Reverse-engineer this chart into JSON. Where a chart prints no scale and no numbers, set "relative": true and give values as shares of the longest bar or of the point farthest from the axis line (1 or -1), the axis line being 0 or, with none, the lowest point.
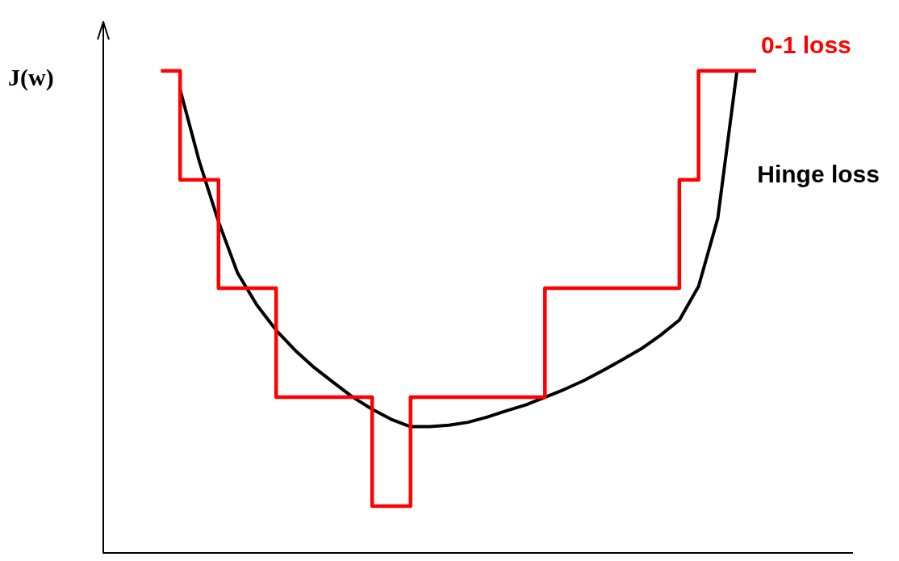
{
  "chart_data": {
    "type": "line",
    "relative": true,
    "ylabel": "J(w)",
    "legend": false,
    "grid": false,
    "marker": "none",
    "categories": [
      null,
      null,
      null,
      null,
      null,
      null,
      null,
      null,
      null,
      null,
      null,
      null,
      null,
      null,
      null,
      null,
      null,
      null,
      null,
      null,
      null,
      null,
      null,
      null,
      null,
      null,
      null,
      null,
      null,
      null,
      null,
      null,
      null,
      null,
      null,
      null,
      null,
      null,
      null,
      null
    ],
    "series": [
      {
        "name": "0-1 loss",
        "type": "step",
        "color": "#ff0000",
        "values": [
          null,
          null,
          null,
          1.0,
          1.0,
          0.774,
          0.774,
          0.549,
          0.549,
          0.549,
          0.323,
          0.323,
          0.323,
          0.323,
          0.323,
          0.097,
          0.097,
          0.323,
          0.323,
          0.323,
          0.323,
          0.323,
          0.323,
          0.323,
          0.549,
          0.549,
          0.549,
          0.549,
          0.549,
          0.549,
          0.549,
          0.774,
          1.0,
          1.0,
          1.0,
          null,
          null,
          null,
          null,
          null
        ]
      },
      {
        "name": "Hinge loss",
        "color": "#000000",
        "values": [
          null,
          null,
          null,
          null,
          0.961,
          0.812,
          0.687,
          0.58,
          0.514,
          0.462,
          0.42,
          0.384,
          0.353,
          0.323,
          0.298,
          0.277,
          0.262,
          0.262,
          0.265,
          0.271,
          0.282,
          0.295,
          0.307,
          0.323,
          0.339,
          0.357,
          0.378,
          0.4,
          0.423,
          0.451,
          0.483,
          0.553,
          0.694,
          1.0,
          null,
          null,
          null,
          null,
          null,
          null
        ]
      }
    ]
  }
}
